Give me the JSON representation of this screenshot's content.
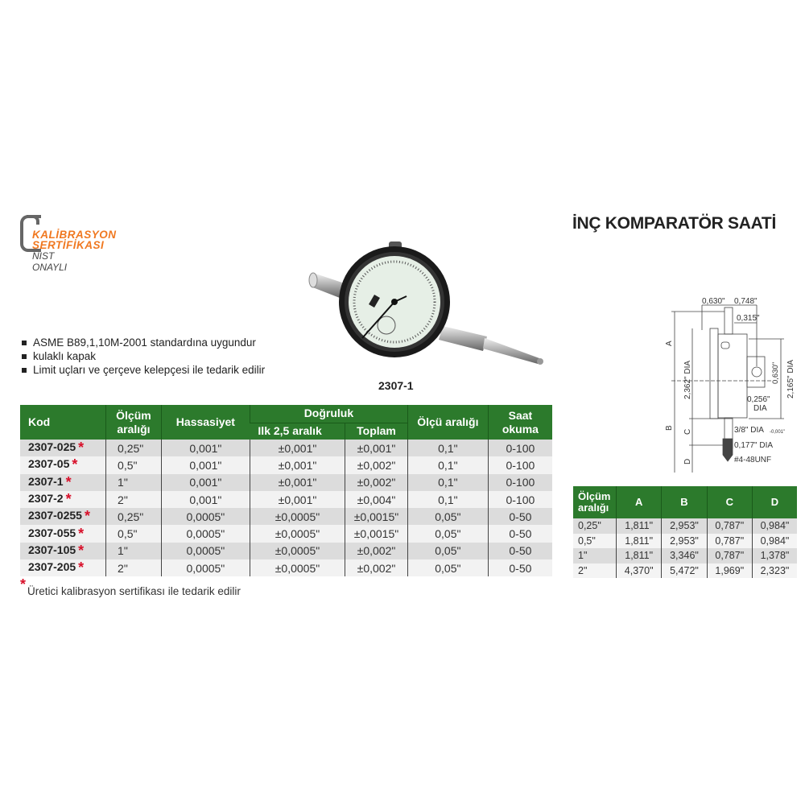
{
  "logo": {
    "line1": "KALİBRASYON",
    "line2": "SERTİFİKASI",
    "line3": "NIST ONAYLI"
  },
  "title": "İNÇ KOMPARATÖR SAATİ",
  "features": [
    "ASME B89,1,10M-2001 standardına uygundur",
    "kulaklı kapak",
    "Limit uçları ve çerçeve kelepçesi ile tedarik edilir"
  ],
  "product_image_label": "2307-1",
  "main_table": {
    "headers": {
      "kod": "Kod",
      "olcum_1": "Ölçüm",
      "olcum_2": "aralığı",
      "hassasiyet": "Hassasiyet",
      "dogruluk": "Doğruluk",
      "ilk": "Ilk 2,5 aralık",
      "toplam": "Toplam",
      "olcu_araligi": "Ölçü aralığı",
      "saat_1": "Saat",
      "saat_2": "okuma"
    },
    "rows": [
      {
        "kod": "2307-025",
        "olcum": "0,25\"",
        "hassasiyet": "0,001\"",
        "ilk": "±0,001\"",
        "toplam": "±0,001\"",
        "olcu": "0,1\"",
        "saat": "0-100"
      },
      {
        "kod": "2307-05",
        "olcum": "0,5\"",
        "hassasiyet": "0,001\"",
        "ilk": "±0,001\"",
        "toplam": "±0,002\"",
        "olcu": "0,1\"",
        "saat": "0-100"
      },
      {
        "kod": "2307-1",
        "olcum": "1\"",
        "hassasiyet": "0,001\"",
        "ilk": "±0,001\"",
        "toplam": "±0,002\"",
        "olcu": "0,1\"",
        "saat": "0-100"
      },
      {
        "kod": "2307-2",
        "olcum": "2\"",
        "hassasiyet": "0,001\"",
        "ilk": "±0,001\"",
        "toplam": "±0,004\"",
        "olcu": "0,1\"",
        "saat": "0-100"
      },
      {
        "kod": "2307-0255",
        "olcum": "0,25\"",
        "hassasiyet": "0,0005\"",
        "ilk": "±0,0005\"",
        "toplam": "±0,0015\"",
        "olcu": "0,05\"",
        "saat": "0-50"
      },
      {
        "kod": "2307-055",
        "olcum": "0,5\"",
        "hassasiyet": "0,0005\"",
        "ilk": "±0,0005\"",
        "toplam": "±0,0015\"",
        "olcu": "0,05\"",
        "saat": "0-50"
      },
      {
        "kod": "2307-105",
        "olcum": "1\"",
        "hassasiyet": "0,0005\"",
        "ilk": "±0,0005\"",
        "toplam": "±0,002\"",
        "olcu": "0,05\"",
        "saat": "0-50"
      },
      {
        "kod": "2307-205",
        "olcum": "2\"",
        "hassasiyet": "0,0005\"",
        "ilk": "±0,0005\"",
        "toplam": "±0,002\"",
        "olcu": "0,05\"",
        "saat": "0-50"
      }
    ],
    "star": "*"
  },
  "footnote": "Üretici kalibrasyon sertifikası ile tedarik edilir",
  "diagram": {
    "d_0630_top": "0,630\"",
    "d_0748": "0,748\"",
    "d_0315": "0,315\"",
    "d_2362": "2,362\" DIA",
    "d_2165": "2,165\" DIA",
    "d_0630_side": "0,630\"",
    "d_0256": "0,256\"",
    "d_dia": "DIA",
    "d_38": "3/8\" DIA",
    "d_tol": "-0,001\"",
    "d_0177": "0,177\" DIA",
    "d_unf": "#4-48UNF",
    "A": "A",
    "B": "B",
    "C": "C",
    "D": "D"
  },
  "dims_table": {
    "headers": {
      "olcum_1": "Ölçüm",
      "olcum_2": "aralığı",
      "a": "A",
      "b": "B",
      "c": "C",
      "d": "D"
    },
    "rows": [
      {
        "r": "0,25\"",
        "a": "1,811\"",
        "b": "2,953\"",
        "c": "0,787\"",
        "d": "0,984\""
      },
      {
        "r": "0,5\"",
        "a": "1,811\"",
        "b": "2,953\"",
        "c": "0,787\"",
        "d": "0,984\""
      },
      {
        "r": "1\"",
        "a": "1,811\"",
        "b": "3,346\"",
        "c": "0,787\"",
        "d": "1,378\""
      },
      {
        "r": "2\"",
        "a": "4,370\"",
        "b": "5,472\"",
        "c": "1,969\"",
        "d": "2,323\""
      }
    ]
  },
  "colors": {
    "header_green": "#2c7a2c",
    "logo_orange": "#f07820",
    "star_red": "#d8102a"
  }
}
